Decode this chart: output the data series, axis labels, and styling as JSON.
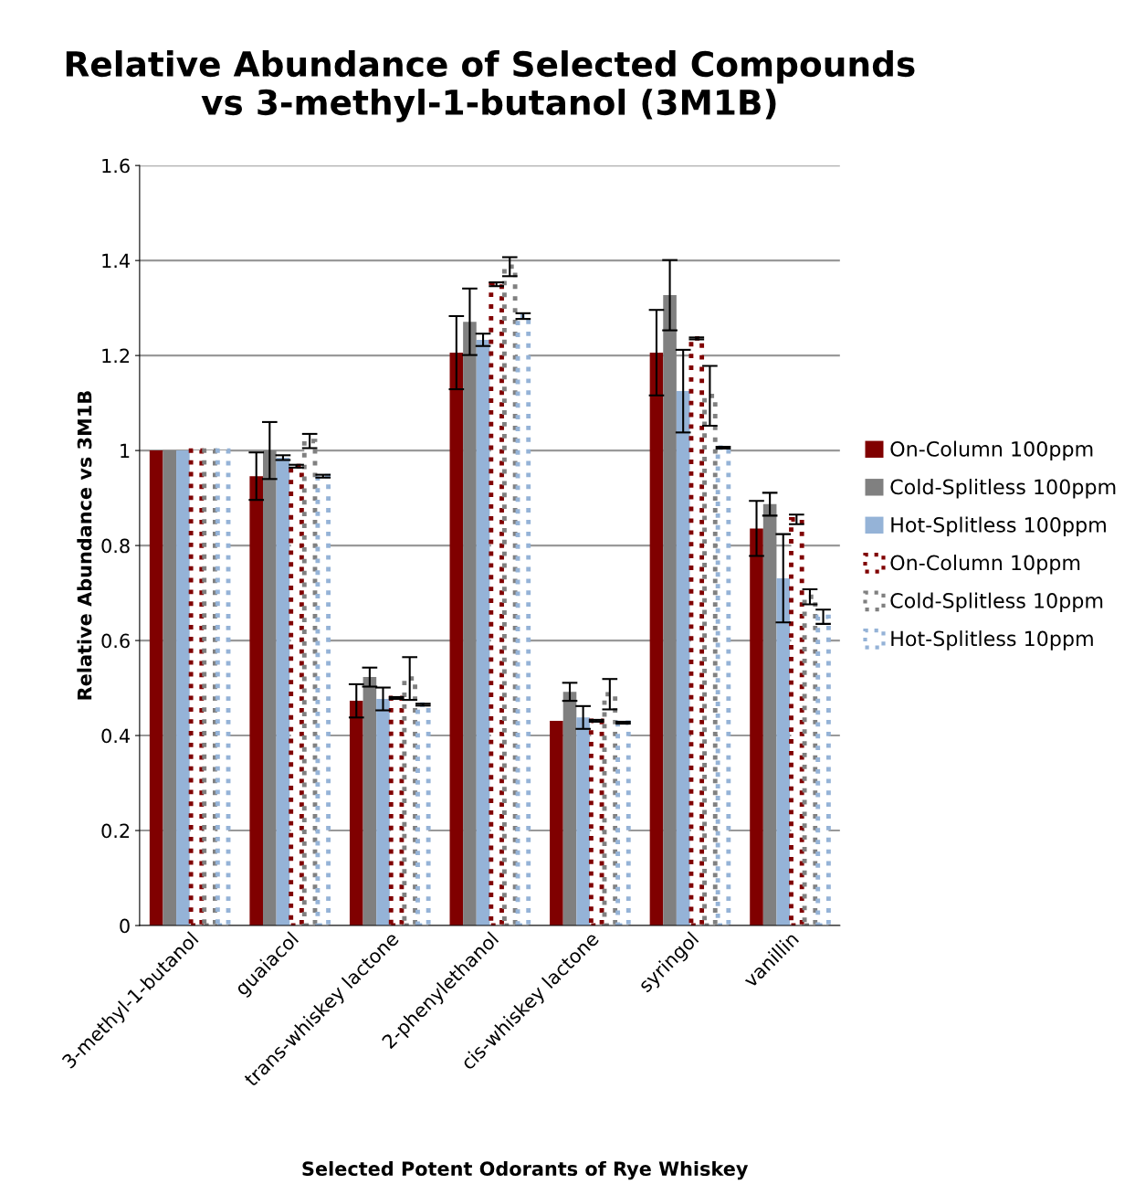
{
  "chart_data": {
    "type": "bar",
    "title": "Relative Abundance of Selected Compounds\nvs 3-methyl-1-butanol (3M1B)",
    "xlabel": "Selected Potent Odorants of Rye Whiskey",
    "ylabel": "Relative Abundance vs 3M1B",
    "categories": [
      "3-methyl-1-butanol",
      "guaiacol",
      "trans-whiskey lactone",
      "2-phenylethanol",
      "cis-whiskey lactone",
      "syringol",
      "vanillin"
    ],
    "ylim": [
      0,
      1.6
    ],
    "yticks": [
      0,
      0.2,
      0.4,
      0.6,
      0.8,
      1,
      1.2,
      1.4,
      1.6
    ],
    "grid": "y",
    "legend": "right",
    "series": [
      {
        "name": "On-Column 100ppm",
        "color": "#800000",
        "line_style": "solid",
        "values": [
          1,
          0.946,
          0.473,
          1.206,
          0.431,
          1.206,
          0.836
        ],
        "errors": [
          null,
          0.05,
          0.035,
          0.077,
          null,
          0.09,
          0.058
        ]
      },
      {
        "name": "Cold-Splitless 100ppm",
        "color": "#808080",
        "line_style": "solid",
        "values": [
          1,
          1.0,
          0.523,
          1.271,
          0.492,
          1.327,
          0.887
        ],
        "errors": [
          null,
          0.06,
          0.02,
          0.07,
          0.019,
          0.074,
          0.024
        ]
      },
      {
        "name": "Hot-Splitless 100ppm",
        "color": "#95b3d7",
        "line_style": "solid",
        "values": [
          1,
          0.985,
          0.477,
          1.233,
          0.438,
          1.125,
          0.731
        ],
        "errors": [
          null,
          0.005,
          0.024,
          0.013,
          0.024,
          0.087,
          0.093
        ]
      },
      {
        "name": "On-Column 10ppm",
        "color": "#800000",
        "line_style": "dotted",
        "values": [
          1,
          0.967,
          0.479,
          1.35,
          0.431,
          1.236,
          0.855
        ],
        "errors": [
          null,
          0.003,
          0.002,
          0.004,
          0.002,
          0.002,
          0.01
        ]
      },
      {
        "name": "Cold-Splitless 10ppm",
        "color": "#808080",
        "line_style": "dotted",
        "values": [
          1,
          1.02,
          0.52,
          1.387,
          0.487,
          1.115,
          0.692
        ],
        "errors": [
          null,
          0.015,
          0.045,
          0.02,
          0.032,
          0.063,
          0.016
        ]
      },
      {
        "name": "Hot-Splitless 10ppm",
        "color": "#95b3d7",
        "line_style": "dotted",
        "values": [
          1,
          0.946,
          0.465,
          1.283,
          0.427,
          1.006,
          0.65
        ],
        "errors": [
          null,
          0.003,
          0.002,
          0.006,
          0.002,
          0.002,
          0.015
        ]
      }
    ]
  }
}
